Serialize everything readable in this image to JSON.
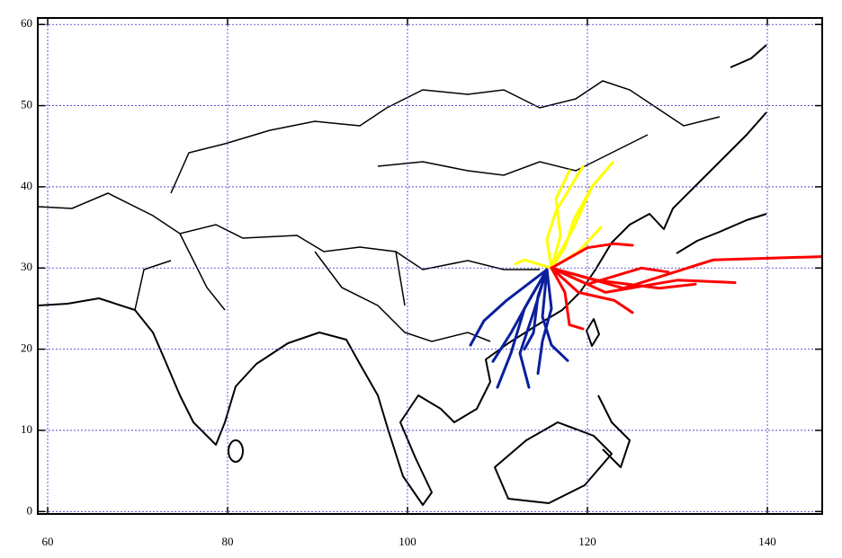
{
  "map": {
    "xlim": [
      58.9,
      146.1
    ],
    "ylim": [
      -0.3,
      60.8
    ],
    "xticks": [
      60,
      80,
      100,
      120,
      140
    ],
    "yticks": [
      0,
      10,
      20,
      30,
      40,
      50,
      60
    ],
    "grid": true,
    "trajectories": [
      {
        "color": "#0a1f9e",
        "tracks": [
          {
            "lon": [
              115.5,
              113,
              111.5,
              110
            ],
            "lat": [
              29.8,
              25,
              19.5,
              15.3
            ]
          },
          {
            "lon": [
              115.5,
              114,
              112.5,
              113.5
            ],
            "lat": [
              29.8,
              24.5,
              19.5,
              15.3
            ]
          },
          {
            "lon": [
              115.5,
              115,
              116,
              117.8
            ],
            "lat": [
              29.8,
              24,
              20.5,
              18.6
            ]
          },
          {
            "lon": [
              115.5,
              111,
              108.5,
              107
            ],
            "lat": [
              29.8,
              26,
              23.5,
              20.5
            ]
          },
          {
            "lon": [
              115.5,
              113.5,
              111.5,
              109.5
            ],
            "lat": [
              29.8,
              26,
              22,
              18.5
            ]
          },
          {
            "lon": [
              115.5,
              114.5,
              114,
              113
            ],
            "lat": [
              29.8,
              26.5,
              22,
              20
            ]
          },
          {
            "lon": [
              115.5,
              116,
              115,
              114.5
            ],
            "lat": [
              29.8,
              25,
              21,
              17
            ]
          }
        ]
      },
      {
        "color": "#ffff00",
        "tracks": [
          {
            "lon": [
              116,
              117,
              116.5,
              118
            ],
            "lat": [
              30,
              34,
              38.5,
              42
            ]
          },
          {
            "lon": [
              116,
              118.5,
              120.5,
              122.8
            ],
            "lat": [
              30,
              35,
              40,
              43
            ]
          },
          {
            "lon": [
              116,
              117.5,
              118.5,
              120.5
            ],
            "lat": [
              30,
              32.5,
              36,
              40
            ]
          },
          {
            "lon": [
              116,
              113,
              112
            ],
            "lat": [
              30,
              31,
              30.5
            ]
          },
          {
            "lon": [
              116,
              119,
              121.5
            ],
            "lat": [
              30,
              32,
              35
            ]
          },
          {
            "lon": [
              116,
              115.5,
              116.5,
              119.5
            ],
            "lat": [
              30,
              33.5,
              37,
              42.5
            ]
          }
        ]
      },
      {
        "color": "#ff0000",
        "tracks": [
          {
            "lon": [
              116,
              124,
              134,
              146
            ],
            "lat": [
              30,
              27.5,
              31,
              31.4
            ]
          },
          {
            "lon": [
              116,
              122,
              130,
              136.4
            ],
            "lat": [
              30,
              27,
              28.5,
              28.2
            ]
          },
          {
            "lon": [
              116,
              119,
              123,
              125
            ],
            "lat": [
              30,
              27,
              26,
              24.5
            ]
          },
          {
            "lon": [
              116,
              117.5,
              118,
              119.5
            ],
            "lat": [
              30,
              27,
              23,
              22.5
            ]
          },
          {
            "lon": [
              116,
              120,
              123,
              125
            ],
            "lat": [
              30,
              32.5,
              33,
              32.8
            ]
          },
          {
            "lon": [
              116,
              121,
              128,
              132
            ],
            "lat": [
              30,
              28.5,
              27.5,
              28
            ]
          },
          {
            "lon": [
              116,
              120,
              126,
              129
            ],
            "lat": [
              30,
              28,
              30,
              29.5
            ]
          }
        ]
      }
    ]
  }
}
